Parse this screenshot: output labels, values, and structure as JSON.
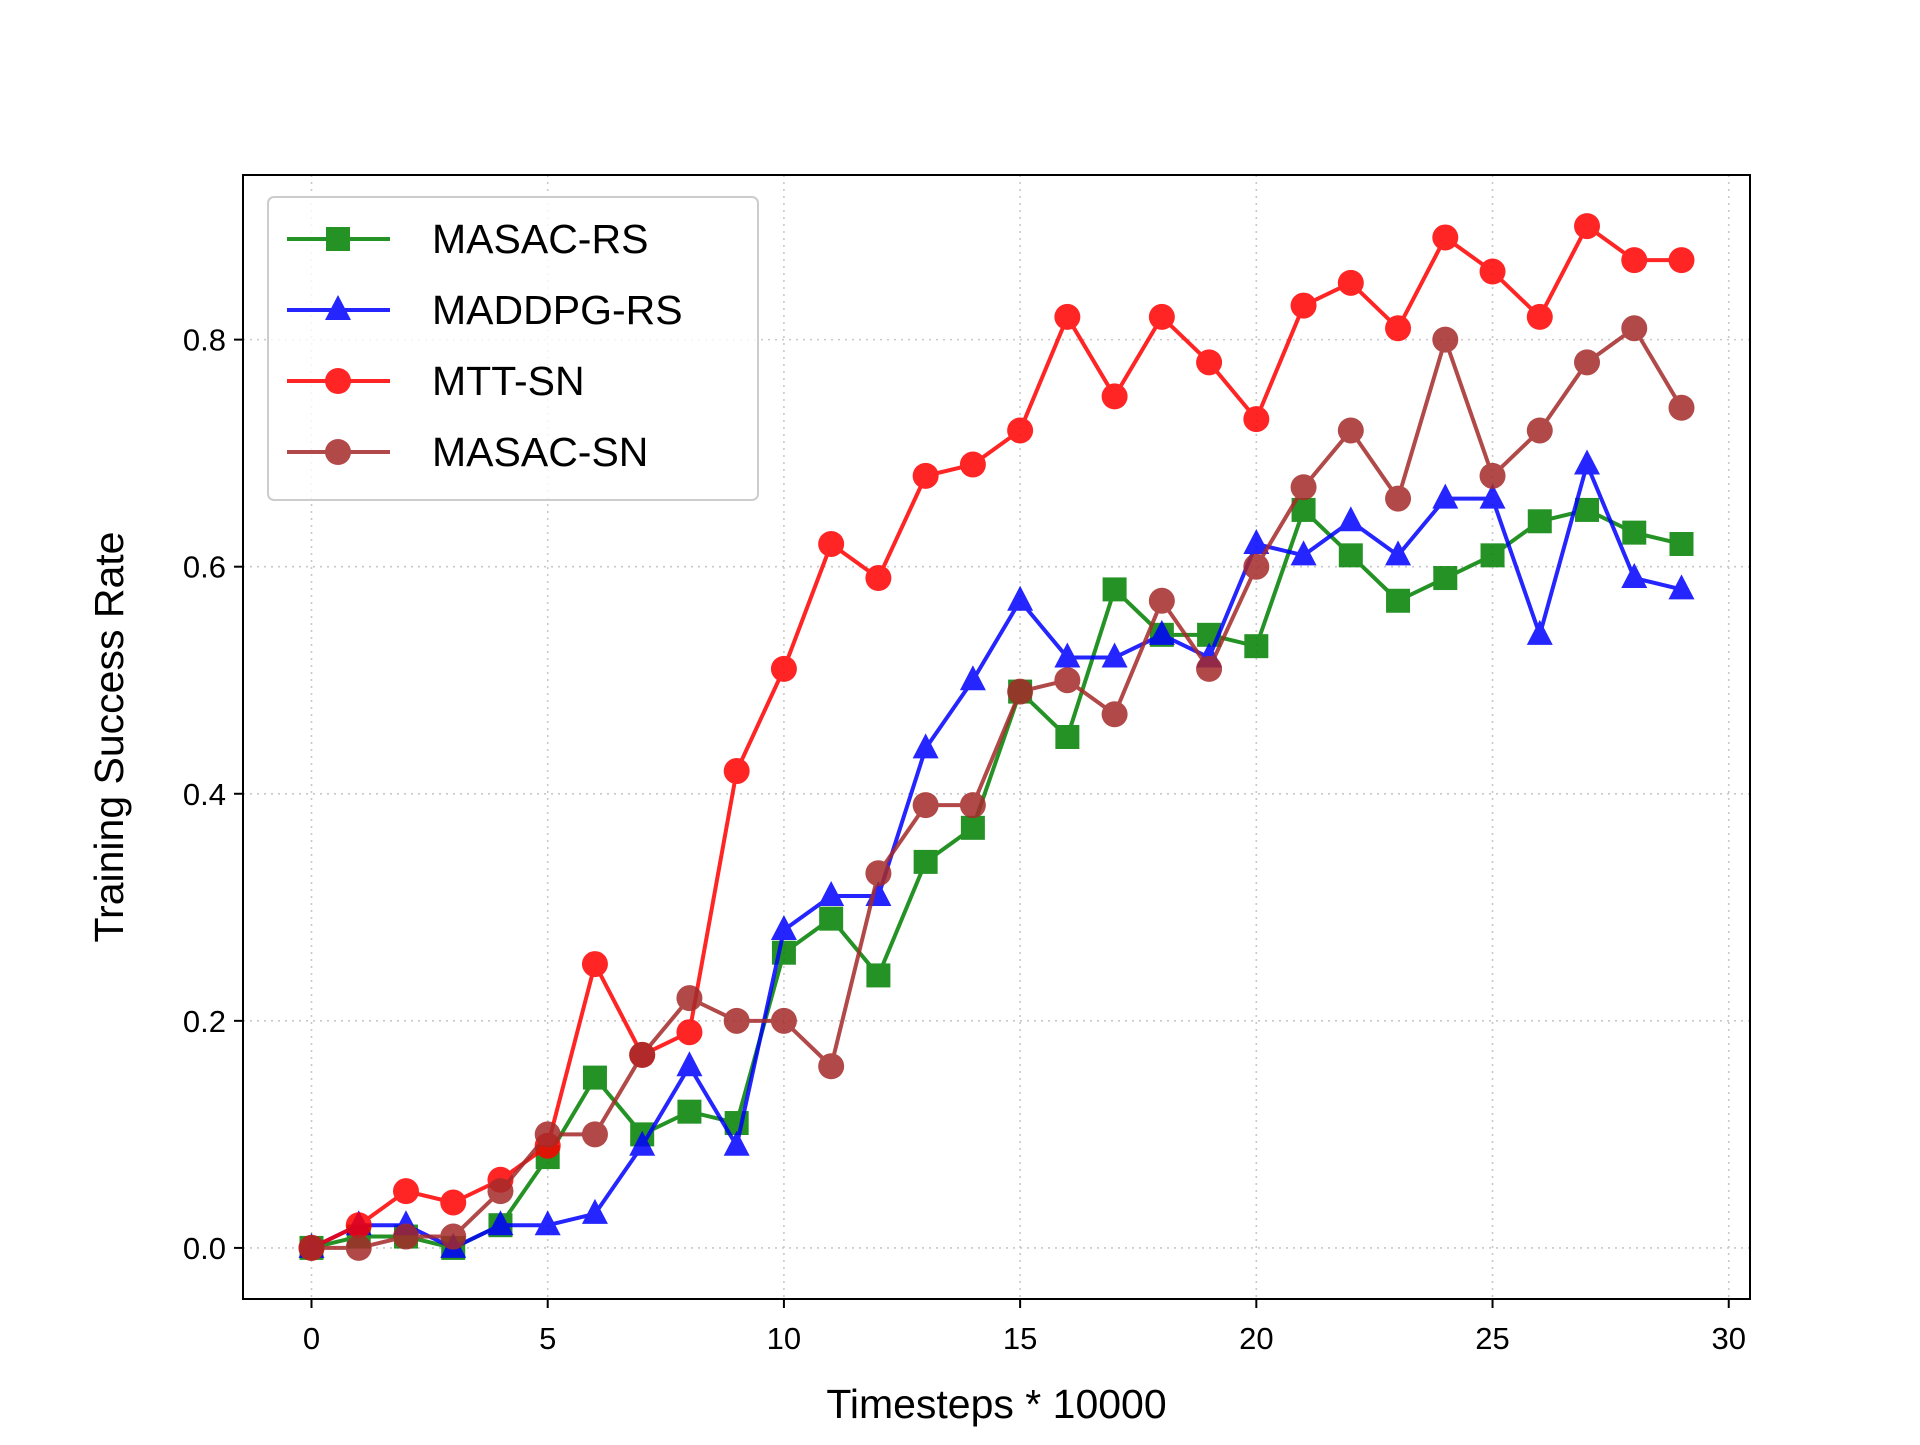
{
  "chart_data": {
    "type": "line",
    "title": "",
    "xlabel": "Timesteps * 10000",
    "ylabel": "Training Success Rate",
    "xlim": [
      -1.45,
      30.45
    ],
    "ylim": [
      -0.045,
      0.945
    ],
    "xticks": [
      0,
      5,
      10,
      15,
      20,
      25,
      30
    ],
    "xtick_labels": [
      "0",
      "5",
      "10",
      "15",
      "20",
      "25",
      "30"
    ],
    "yticks": [
      0.0,
      0.2,
      0.4,
      0.6,
      0.8
    ],
    "ytick_labels": [
      "0.0",
      "0.2",
      "0.4",
      "0.6",
      "0.8"
    ],
    "grid": true,
    "legend_position": "upper-left",
    "x": [
      0,
      1,
      2,
      3,
      4,
      5,
      6,
      7,
      8,
      9,
      10,
      11,
      12,
      13,
      14,
      15,
      16,
      17,
      18,
      19,
      20,
      21,
      22,
      23,
      24,
      25,
      26,
      27,
      28,
      29
    ],
    "series": [
      {
        "name": "MASAC-RS",
        "color": "#008000",
        "marker": "square",
        "values": [
          0.0,
          0.01,
          0.01,
          0.0,
          0.02,
          0.08,
          0.15,
          0.1,
          0.12,
          0.11,
          0.26,
          0.29,
          0.24,
          0.34,
          0.37,
          0.49,
          0.45,
          0.58,
          0.54,
          0.54,
          0.53,
          0.65,
          0.61,
          0.57,
          0.59,
          0.61,
          0.64,
          0.65,
          0.63,
          0.62
        ]
      },
      {
        "name": "MADDPG-RS",
        "color": "#0000ff",
        "marker": "triangle",
        "values": [
          0.0,
          0.02,
          0.02,
          0.0,
          0.02,
          0.02,
          0.03,
          0.09,
          0.16,
          0.09,
          0.28,
          0.31,
          0.31,
          0.44,
          0.5,
          0.57,
          0.52,
          0.52,
          0.54,
          0.52,
          0.62,
          0.61,
          0.64,
          0.61,
          0.66,
          0.66,
          0.54,
          0.69,
          0.59,
          0.58
        ]
      },
      {
        "name": "MTT-SN",
        "color": "#ff0000",
        "marker": "circle",
        "values": [
          0.0,
          0.02,
          0.05,
          0.04,
          0.06,
          0.09,
          0.25,
          0.17,
          0.19,
          0.42,
          0.51,
          0.62,
          0.59,
          0.68,
          0.69,
          0.72,
          0.82,
          0.75,
          0.82,
          0.78,
          0.73,
          0.83,
          0.85,
          0.81,
          0.89,
          0.86,
          0.82,
          0.9,
          0.87,
          0.87
        ]
      },
      {
        "name": "MASAC-SN",
        "color": "#a52a2a",
        "marker": "circle",
        "values": [
          0.0,
          0.0,
          0.01,
          0.01,
          0.05,
          0.1,
          0.1,
          0.17,
          0.22,
          0.2,
          0.2,
          0.16,
          0.33,
          0.39,
          0.39,
          0.49,
          0.5,
          0.47,
          0.57,
          0.51,
          0.6,
          0.67,
          0.72,
          0.66,
          0.8,
          0.68,
          0.72,
          0.78,
          0.81,
          0.74
        ]
      }
    ]
  }
}
